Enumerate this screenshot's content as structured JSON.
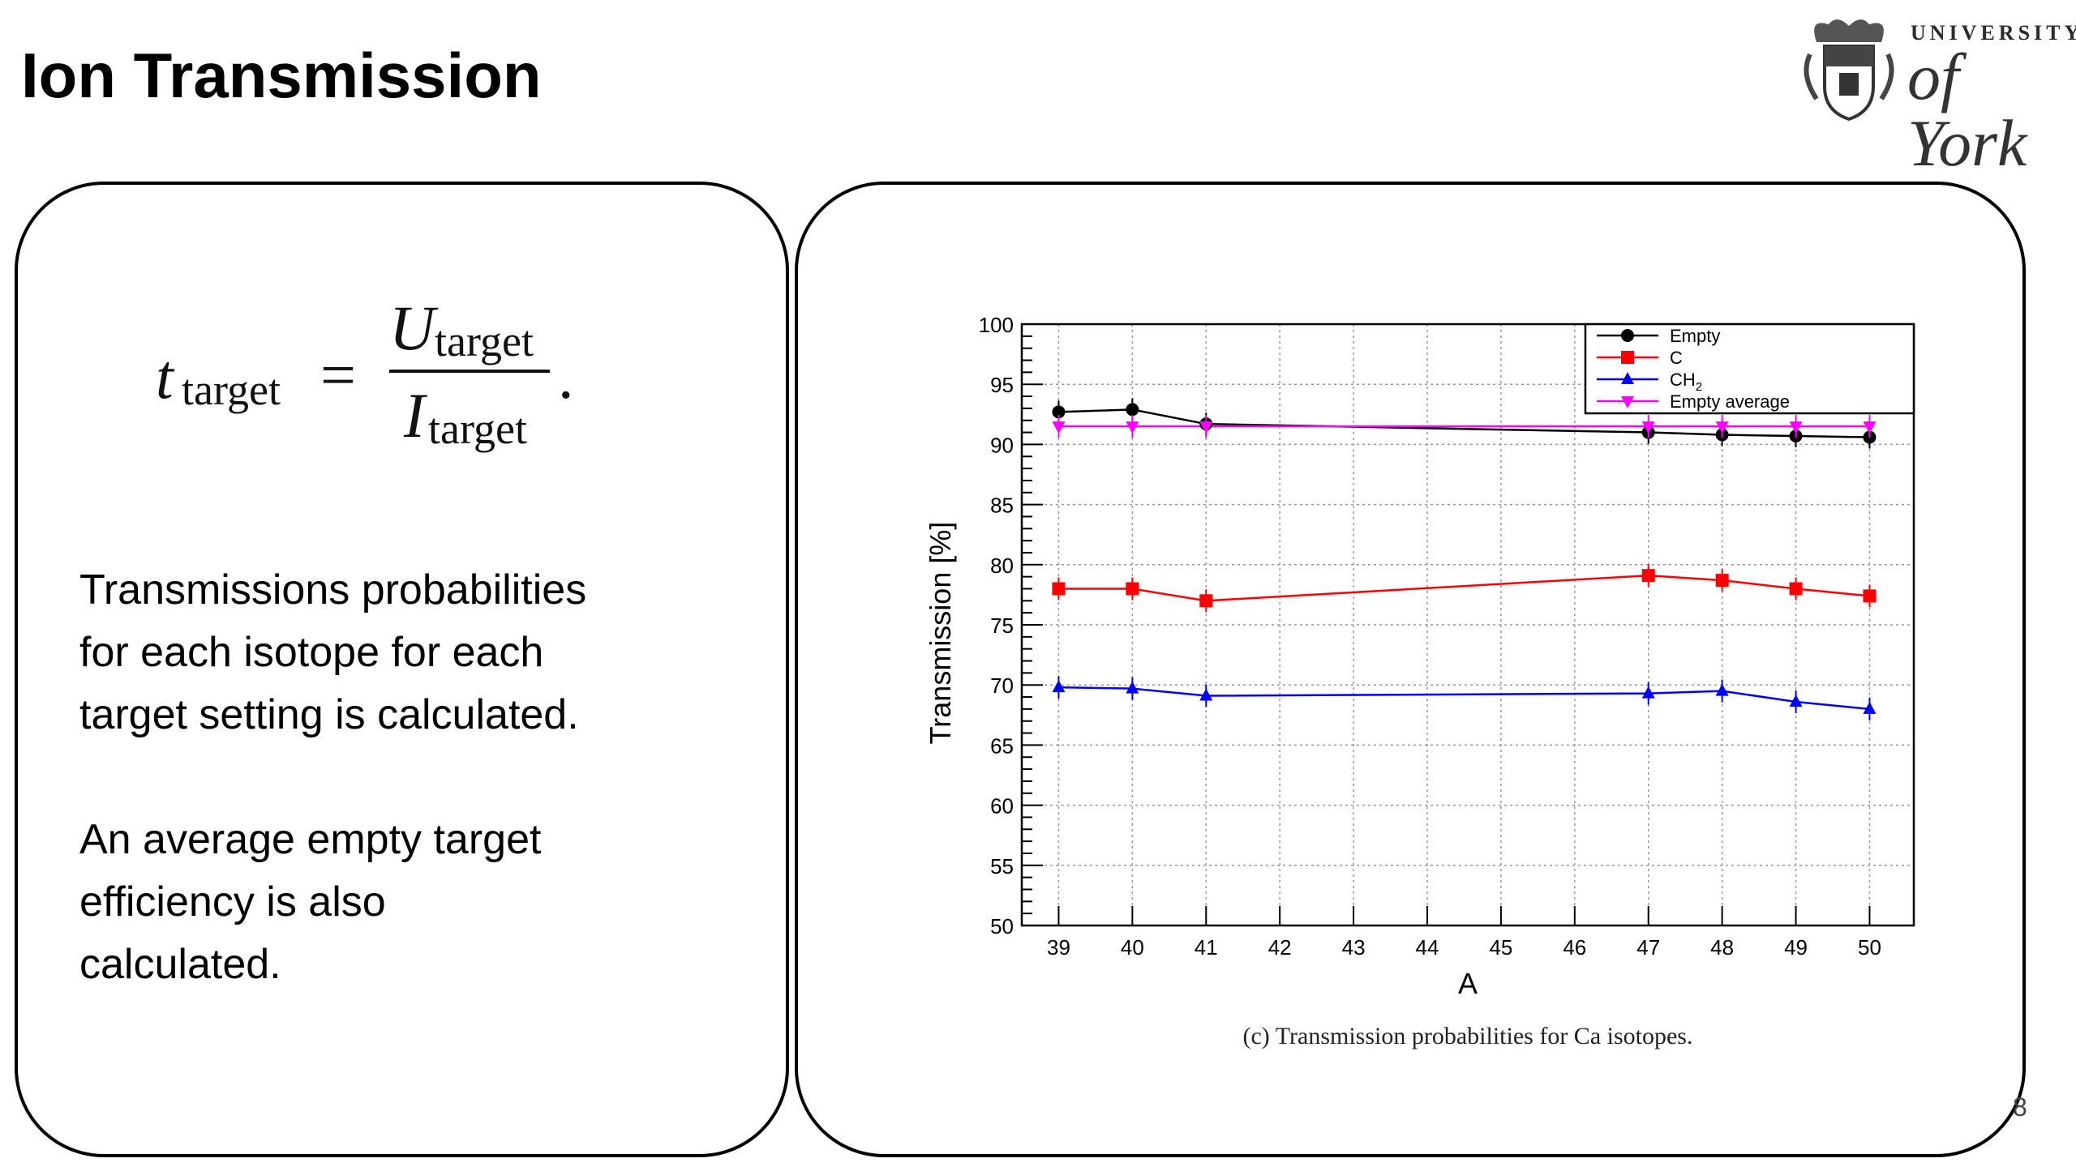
{
  "slide": {
    "title": "Ion Transmission",
    "page_number": "8"
  },
  "logo": {
    "line1": "UNIVERSITY",
    "line2": "of York"
  },
  "formula": {
    "lhs": "t",
    "lhs_sub": "target",
    "eq": "=",
    "num": "U",
    "num_sub": "target",
    "den": "I",
    "den_sub": "target",
    "end": "."
  },
  "text": {
    "para1": [
      "Transmissions probabilities",
      "for each isotope for each",
      "target setting is calculated."
    ],
    "para2": [
      "An average empty target",
      "efficiency is also",
      "calculated."
    ]
  },
  "caption": "(c) Transmission probabilities for Ca isotopes.",
  "chart_data": {
    "type": "line",
    "xlabel": "A",
    "ylabel": "Transmission [%]",
    "xlim": [
      38.5,
      50.6
    ],
    "ylim": [
      50,
      100
    ],
    "xticks": [
      39,
      40,
      41,
      42,
      43,
      44,
      45,
      46,
      47,
      48,
      49,
      50
    ],
    "yticks": [
      50,
      55,
      60,
      65,
      70,
      75,
      80,
      85,
      90,
      95,
      100
    ],
    "grid": true,
    "legend_position": "top-right",
    "series": [
      {
        "name": "Empty",
        "color": "#000000",
        "marker": "circle",
        "x": [
          39,
          40,
          41,
          47,
          48,
          49,
          50
        ],
        "y": [
          92.7,
          92.9,
          91.7,
          91.0,
          90.8,
          90.7,
          90.6
        ]
      },
      {
        "name": "C",
        "color": "#ff0000",
        "marker": "square",
        "x": [
          39,
          40,
          41,
          47,
          48,
          49,
          50
        ],
        "y": [
          78.0,
          78.0,
          77.0,
          79.1,
          78.7,
          78.0,
          77.4
        ]
      },
      {
        "name": "CH",
        "name_sub": "2",
        "color": "#0000ff",
        "marker": "triangle-up",
        "x": [
          39,
          40,
          41,
          47,
          48,
          49,
          50
        ],
        "y": [
          69.8,
          69.7,
          69.1,
          69.3,
          69.5,
          68.6,
          68.0
        ]
      },
      {
        "name": "Empty average",
        "color": "#ff00ff",
        "marker": "triangle-down",
        "x": [
          39,
          40,
          41,
          47,
          48,
          49,
          50
        ],
        "y": [
          91.5,
          91.5,
          91.5,
          91.5,
          91.5,
          91.5,
          91.5
        ]
      }
    ]
  }
}
